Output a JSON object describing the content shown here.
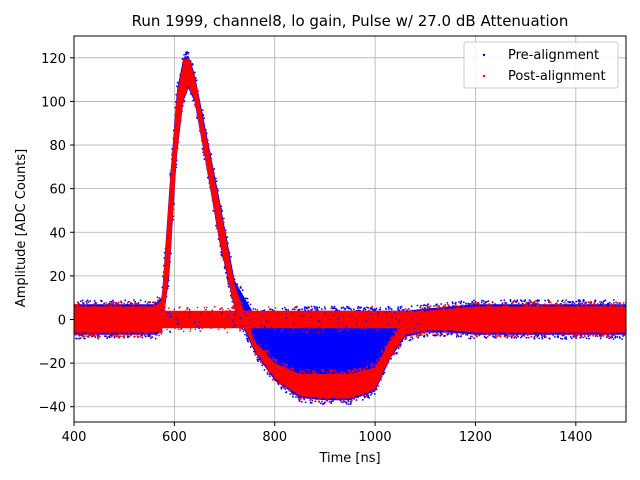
{
  "chart_data": {
    "type": "scatter",
    "title": "Run 1999, channel8, lo gain, Pulse w/ 27.0 dB Attenuation",
    "xlabel": "Time [ns]",
    "ylabel": "Amplitude [ADC Counts]",
    "xlim": [
      400,
      1500
    ],
    "ylim": [
      -47,
      130
    ],
    "xticks": [
      400,
      600,
      800,
      1000,
      1200,
      1400
    ],
    "yticks": [
      -40,
      -20,
      0,
      20,
      40,
      60,
      80,
      100,
      120
    ],
    "grid": true,
    "legend_position": "top-right",
    "series": [
      {
        "name": "Pre-alignment",
        "color": "#0000ff",
        "marker": "dot",
        "envelope": {
          "x": [
            400,
            560,
            575,
            590,
            605,
            618,
            628,
            640,
            660,
            690,
            720,
            760,
            800,
            850,
            900,
            950,
            1000,
            1030,
            1060,
            1100,
            1150,
            1200,
            1300,
            1400,
            1500
          ],
          "upper": [
            7,
            7,
            10,
            60,
            105,
            120,
            121,
            113,
            90,
            55,
            18,
            2,
            3,
            4,
            4,
            4,
            4,
            4,
            4,
            5,
            6,
            7,
            7,
            7,
            7
          ],
          "lower": [
            -7,
            -7,
            -6,
            20,
            75,
            100,
            106,
            100,
            75,
            35,
            5,
            -15,
            -28,
            -36,
            -37,
            -37,
            -33,
            -18,
            -8,
            -6,
            -6,
            -7,
            -7,
            -7,
            -7
          ]
        }
      },
      {
        "name": "Post-alignment",
        "color": "#ff0000",
        "marker": "dot",
        "envelope": {
          "x": [
            400,
            560,
            575,
            590,
            605,
            618,
            628,
            640,
            660,
            690,
            720,
            760,
            800,
            850,
            900,
            950,
            1000,
            1030,
            1060,
            1100,
            1150,
            1200,
            1300,
            1400,
            1500
          ],
          "upper": [
            6,
            6,
            9,
            58,
            103,
            118,
            120,
            112,
            88,
            53,
            16,
            -10,
            -20,
            -25,
            -25,
            -25,
            -22,
            -10,
            0,
            4,
            5,
            6,
            6,
            6,
            6
          ],
          "lower": [
            -6,
            -6,
            -5,
            22,
            77,
            101,
            107,
            101,
            76,
            36,
            6,
            -14,
            -27,
            -35,
            -36,
            -36,
            -32,
            -17,
            -7,
            -5,
            -5,
            -6,
            -6,
            -6,
            -6
          ]
        },
        "baseline_band": {
          "x": [
            560,
            1100
          ],
          "y": [
            -4,
            4
          ]
        }
      }
    ]
  },
  "legend": {
    "pre_label": "Pre-alignment",
    "post_label": "Post-alignment"
  }
}
